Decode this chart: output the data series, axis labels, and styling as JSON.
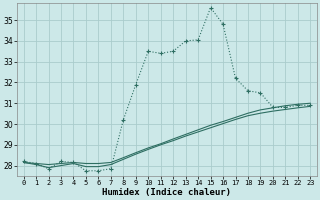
{
  "xlabel": "Humidex (Indice chaleur)",
  "background_color": "#cce8e8",
  "line_color": "#2e6e62",
  "grid_color": "#aacccc",
  "xlim": [
    -0.5,
    23.5
  ],
  "ylim": [
    27.5,
    35.8
  ],
  "yticks": [
    28,
    29,
    30,
    31,
    32,
    33,
    34,
    35
  ],
  "xticks": [
    0,
    1,
    2,
    3,
    4,
    5,
    6,
    7,
    8,
    9,
    10,
    11,
    12,
    13,
    14,
    15,
    16,
    17,
    18,
    19,
    20,
    21,
    22,
    23
  ],
  "series1_x": [
    0,
    1,
    2,
    3,
    4,
    5,
    6,
    7,
    8,
    9,
    10,
    11,
    12,
    13,
    14,
    15,
    16,
    17,
    18,
    19,
    20,
    21,
    22,
    23
  ],
  "series1_y": [
    28.2,
    28.1,
    27.85,
    28.2,
    28.15,
    27.75,
    27.75,
    27.85,
    30.2,
    31.9,
    33.5,
    33.4,
    33.5,
    34.0,
    34.05,
    35.6,
    34.8,
    32.2,
    31.6,
    31.5,
    30.8,
    30.8,
    30.9,
    30.9
  ],
  "series2_x": [
    0,
    1,
    2,
    3,
    4,
    5,
    6,
    7,
    8,
    9,
    10,
    11,
    12,
    13,
    14,
    15,
    16,
    17,
    18,
    19,
    20,
    21,
    22,
    23
  ],
  "series2_y": [
    28.15,
    28.1,
    28.05,
    28.1,
    28.15,
    28.1,
    28.1,
    28.15,
    28.38,
    28.62,
    28.85,
    29.05,
    29.28,
    29.5,
    29.72,
    29.94,
    30.12,
    30.32,
    30.52,
    30.68,
    30.78,
    30.88,
    30.95,
    31.0
  ],
  "series3_x": [
    0,
    1,
    2,
    3,
    4,
    5,
    6,
    7,
    8,
    9,
    10,
    11,
    12,
    13,
    14,
    15,
    16,
    17,
    18,
    19,
    20,
    21,
    22,
    23
  ],
  "series3_y": [
    28.15,
    28.05,
    27.9,
    28.0,
    28.1,
    27.95,
    27.95,
    28.05,
    28.3,
    28.55,
    28.78,
    29.0,
    29.2,
    29.42,
    29.62,
    29.82,
    30.02,
    30.22,
    30.4,
    30.52,
    30.62,
    30.7,
    30.78,
    30.85
  ]
}
